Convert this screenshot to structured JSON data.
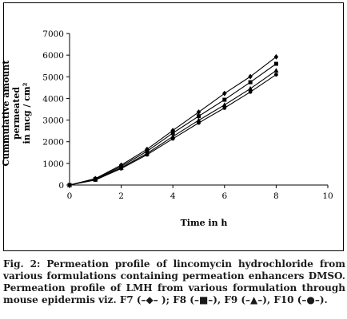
{
  "chart_data": {
    "type": "line",
    "x": [
      0,
      1,
      2,
      3,
      4,
      5,
      6,
      7,
      8
    ],
    "series": [
      {
        "name": "F7",
        "marker": "diamond",
        "values": [
          0,
          300,
          920,
          1650,
          2520,
          3370,
          4230,
          5010,
          5920
        ]
      },
      {
        "name": "F8",
        "marker": "square",
        "values": [
          0,
          280,
          860,
          1560,
          2400,
          3180,
          3940,
          4750,
          5600
        ]
      },
      {
        "name": "F9",
        "marker": "triangle",
        "values": [
          0,
          250,
          800,
          1460,
          2240,
          2990,
          3700,
          4450,
          5290
        ]
      },
      {
        "name": "F10",
        "marker": "circle",
        "values": [
          0,
          230,
          760,
          1400,
          2140,
          2870,
          3560,
          4300,
          5100
        ]
      }
    ],
    "xlim": [
      0,
      10
    ],
    "ylim": [
      0,
      7000
    ],
    "x_ticks": [
      0,
      2,
      4,
      6,
      8,
      10
    ],
    "y_ticks": [
      0,
      1000,
      2000,
      3000,
      4000,
      5000,
      6000,
      7000
    ],
    "x_tick_labels": [
      "0",
      "2",
      "4",
      "6",
      "8",
      "10"
    ],
    "y_tick_labels": [
      "0",
      "1000",
      "2000",
      "3000",
      "4000",
      "5000",
      "6000",
      "7000"
    ],
    "xlabel": "Time in h",
    "ylabel_line1": "Cummulative amount permeated",
    "ylabel_line2": "in mcg / cm²",
    "grid": false,
    "legend": "none",
    "line_color": "#000000"
  },
  "caption": "Fig. 2: Permeation profile of lincomycin hydrochloride from various formulations containing permeation enhancers DMSO. Permeation profile of LMH from various formulation through mouse epidermis viz. F7 (–◆– ); F8 (–■–), F9 (–▲–), F10 (–●–)."
}
